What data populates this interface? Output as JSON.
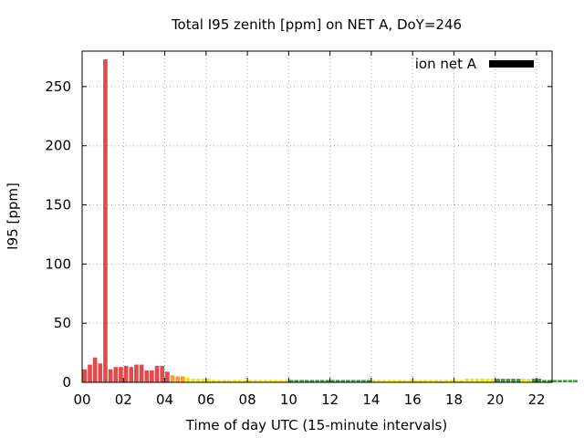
{
  "chart_data": {
    "type": "bar",
    "title": "Total I95 zenith [ppm] on NET A, DoY=246",
    "xlabel": "Time of day UTC (15-minute intervals)",
    "ylabel": "I95 [ppm]",
    "legend": {
      "label": "ion net A",
      "position": "top-right",
      "color": "#000000"
    },
    "grid": true,
    "xlim": [
      0,
      22.75
    ],
    "ylim": [
      0,
      280
    ],
    "xticks": [
      0,
      2,
      4,
      6,
      8,
      10,
      12,
      14,
      16,
      18,
      20,
      22
    ],
    "xtick_labels": [
      "00",
      "02",
      "04",
      "06",
      "08",
      "10",
      "12",
      "14",
      "16",
      "18",
      "20",
      "22"
    ],
    "yticks": [
      0,
      50,
      100,
      150,
      200,
      250
    ],
    "ytick_labels": [
      "0",
      "50",
      "100",
      "150",
      "200",
      "250"
    ],
    "bar_interval_hours": 0.25,
    "value_colors": {
      "red": "#e04b4b",
      "orange": "#f0a030",
      "yellow": "#f2e800",
      "green": "#3a9a3a"
    },
    "values": [
      11,
      15,
      21,
      16,
      273,
      11,
      13,
      13,
      14,
      13,
      15,
      15,
      10,
      10,
      14,
      14,
      9,
      6,
      5,
      5,
      4,
      3,
      3,
      3,
      3,
      2,
      2,
      2,
      2,
      2,
      2,
      2,
      2,
      2,
      2,
      2,
      2,
      2,
      2,
      2,
      2,
      2,
      2,
      2,
      2,
      2,
      2,
      2,
      2,
      2,
      2,
      2,
      2,
      2,
      2,
      2,
      2,
      2,
      2,
      2,
      2,
      2,
      2,
      2,
      2,
      2,
      2,
      2,
      2,
      2,
      2,
      2,
      2,
      2,
      3,
      3,
      3,
      3,
      3,
      3,
      3,
      3,
      3,
      3,
      3,
      3,
      3,
      3,
      3,
      2,
      2,
      2,
      2,
      2,
      2,
      2
    ],
    "colors": [
      "red",
      "red",
      "red",
      "red",
      "red",
      "red",
      "red",
      "red",
      "red",
      "red",
      "red",
      "red",
      "red",
      "red",
      "red",
      "red",
      "red",
      "orange",
      "orange",
      "orange",
      "yellow",
      "yellow",
      "yellow",
      "yellow",
      "yellow",
      "yellow",
      "yellow",
      "yellow",
      "yellow",
      "yellow",
      "yellow",
      "yellow",
      "yellow",
      "yellow",
      "yellow",
      "yellow",
      "yellow",
      "yellow",
      "yellow",
      "yellow",
      "green",
      "green",
      "green",
      "green",
      "green",
      "green",
      "green",
      "green",
      "green",
      "green",
      "green",
      "green",
      "green",
      "green",
      "green",
      "green",
      "yellow",
      "yellow",
      "yellow",
      "yellow",
      "yellow",
      "yellow",
      "yellow",
      "yellow",
      "yellow",
      "yellow",
      "yellow",
      "yellow",
      "yellow",
      "yellow",
      "yellow",
      "yellow",
      "yellow",
      "yellow",
      "yellow",
      "yellow",
      "yellow",
      "yellow",
      "yellow",
      "yellow",
      "green",
      "green",
      "green",
      "green",
      "green",
      "yellow",
      "yellow",
      "green",
      "green",
      "green",
      "green",
      "green",
      "green",
      "green",
      "green",
      "green"
    ]
  }
}
